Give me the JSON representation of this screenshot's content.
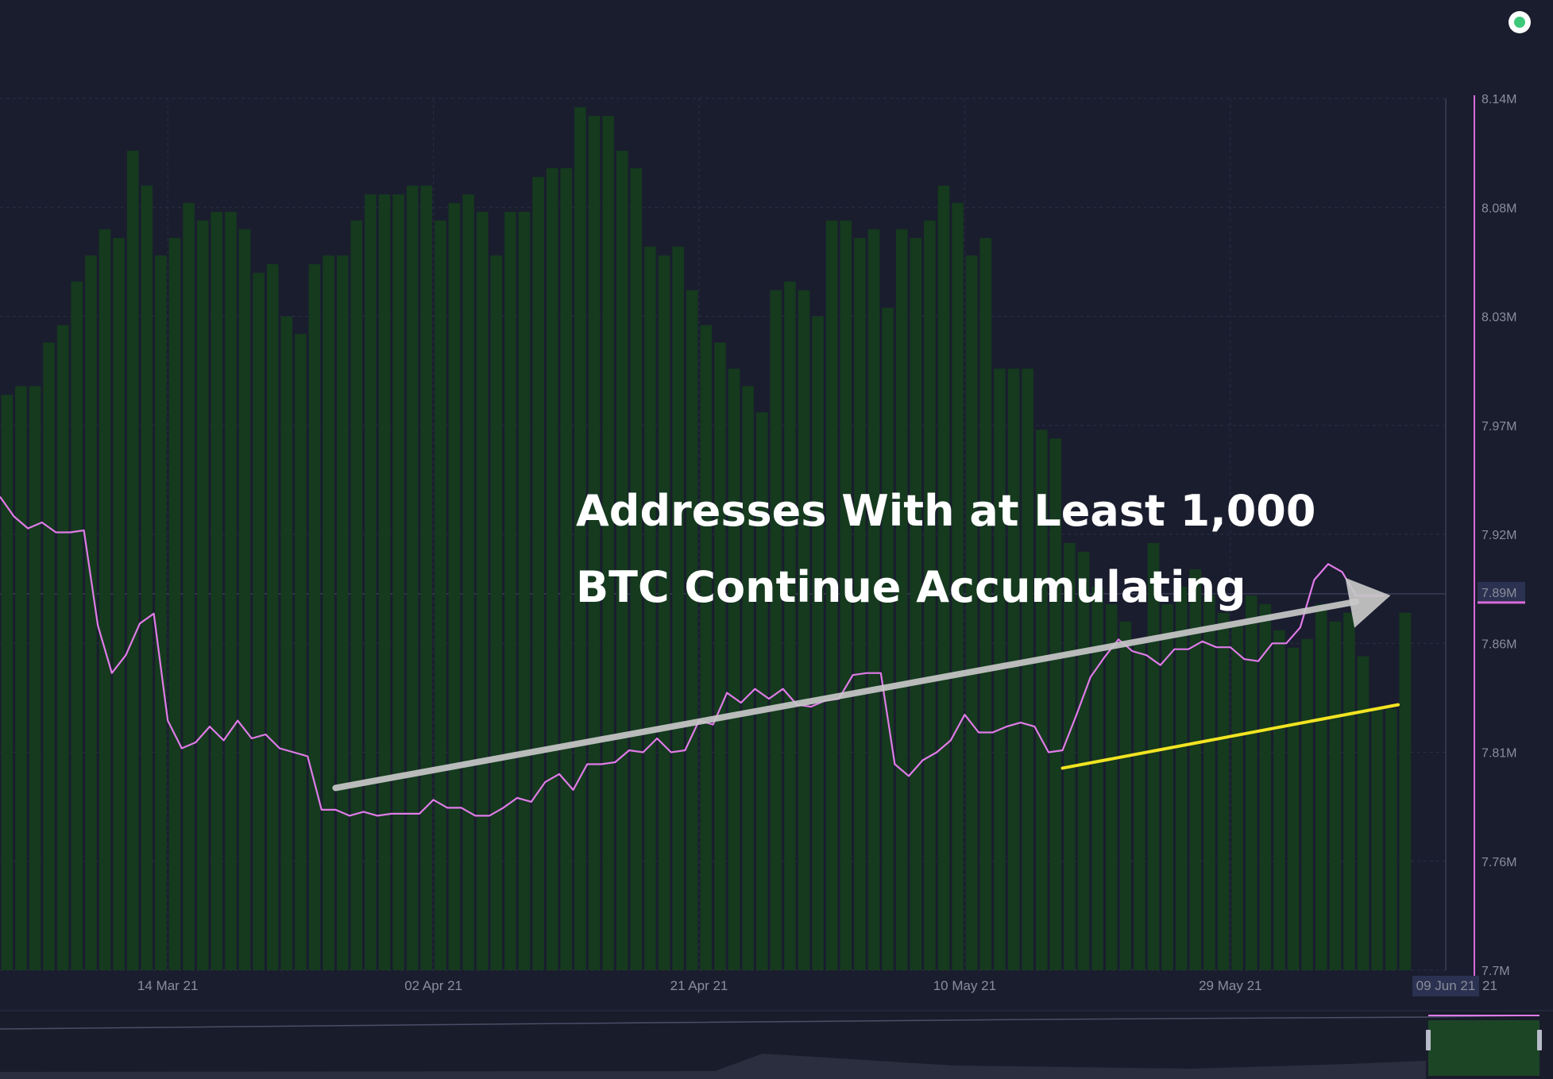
{
  "headline": {
    "line1": "Addresses With at Least 1,000",
    "line2": "BTC Continue Accumulating"
  },
  "colors": {
    "background": "#1a1d2e",
    "bar": "#153a1e",
    "line": "#e07be8",
    "trend_arrow": "#c8c8c8",
    "support_line": "#f2e422",
    "axis_line": "#d96ad9",
    "status_dot": "#3ec97a"
  },
  "chart_data": {
    "type": "bar+line",
    "x_axis": {
      "tick_labels": [
        "14 Mar 21",
        "02 Apr 21",
        "21 Apr 21",
        "10 May 21",
        "29 May 21",
        "21"
      ],
      "highlighted_label": "09 Jun 21"
    },
    "y_axis": {
      "position": "right",
      "ylim": [
        7.7,
        8.14
      ],
      "tick_labels": [
        "8.14M",
        "8.08M",
        "8.03M",
        "7.97M",
        "7.92M",
        "7.86M",
        "7.81M",
        "7.76M",
        "7.7M"
      ],
      "current_value_label": "7.89M",
      "current_value": 7.89
    },
    "grid": true,
    "bars": {
      "name": "",
      "relative_values": [
        0.66,
        0.67,
        0.67,
        0.72,
        0.74,
        0.79,
        0.82,
        0.85,
        0.84,
        0.94,
        0.9,
        0.82,
        0.84,
        0.88,
        0.86,
        0.87,
        0.87,
        0.85,
        0.8,
        0.81,
        0.75,
        0.73,
        0.81,
        0.82,
        0.82,
        0.86,
        0.89,
        0.89,
        0.89,
        0.9,
        0.9,
        0.86,
        0.88,
        0.89,
        0.87,
        0.82,
        0.87,
        0.87,
        0.91,
        0.92,
        0.92,
        0.99,
        0.98,
        0.98,
        0.94,
        0.92,
        0.83,
        0.82,
        0.83,
        0.78,
        0.74,
        0.72,
        0.69,
        0.67,
        0.64,
        0.78,
        0.79,
        0.78,
        0.75,
        0.86,
        0.86,
        0.84,
        0.85,
        0.76,
        0.85,
        0.84,
        0.86,
        0.9,
        0.88,
        0.82,
        0.84,
        0.69,
        0.69,
        0.69,
        0.62,
        0.61,
        0.49,
        0.48,
        0.44,
        0.42,
        0.4,
        0.38,
        0.49,
        0.42,
        0.44,
        0.46,
        0.43,
        0.41,
        0.4,
        0.43,
        0.42,
        0.39,
        0.37,
        0.38,
        0.42,
        0.4,
        0.41,
        0.36,
        0.3,
        0.3,
        0.41
      ],
      "start_date": "2021-03-02",
      "end_date": "2021-06-09"
    },
    "line_series": {
      "name": "",
      "color": "#e07be8",
      "dates": [
        "2021-03-02",
        "2021-03-03",
        "2021-03-04",
        "2021-03-05",
        "2021-03-06",
        "2021-03-07",
        "2021-03-08",
        "2021-03-09",
        "2021-03-10",
        "2021-03-11",
        "2021-03-12",
        "2021-03-13",
        "2021-03-14",
        "2021-03-15",
        "2021-03-16",
        "2021-03-17",
        "2021-03-18",
        "2021-03-19",
        "2021-03-20",
        "2021-03-21",
        "2021-03-22",
        "2021-03-23",
        "2021-03-24",
        "2021-03-25",
        "2021-03-26",
        "2021-03-27",
        "2021-03-28",
        "2021-03-29",
        "2021-03-30",
        "2021-03-31",
        "2021-04-01",
        "2021-04-02",
        "2021-04-03",
        "2021-04-04",
        "2021-04-05",
        "2021-04-06",
        "2021-04-07",
        "2021-04-08",
        "2021-04-09",
        "2021-04-10",
        "2021-04-11",
        "2021-04-12",
        "2021-04-13",
        "2021-04-14",
        "2021-04-15",
        "2021-04-16",
        "2021-04-17",
        "2021-04-18",
        "2021-04-19",
        "2021-04-20",
        "2021-04-21",
        "2021-04-22",
        "2021-04-23",
        "2021-04-24",
        "2021-04-25",
        "2021-04-26",
        "2021-04-27",
        "2021-04-28",
        "2021-04-29",
        "2021-04-30",
        "2021-05-01",
        "2021-05-02",
        "2021-05-03",
        "2021-05-04",
        "2021-05-05",
        "2021-05-06",
        "2021-05-07",
        "2021-05-08",
        "2021-05-09",
        "2021-05-10",
        "2021-05-11",
        "2021-05-12",
        "2021-05-13",
        "2021-05-14",
        "2021-05-15",
        "2021-05-16",
        "2021-05-17",
        "2021-05-18",
        "2021-05-19",
        "2021-05-20",
        "2021-05-21",
        "2021-05-22",
        "2021-05-23",
        "2021-05-24",
        "2021-05-25",
        "2021-05-26",
        "2021-05-27",
        "2021-05-28",
        "2021-05-29",
        "2021-05-30",
        "2021-05-31",
        "2021-06-01",
        "2021-06-02",
        "2021-06-03",
        "2021-06-04",
        "2021-06-05",
        "2021-06-06",
        "2021-06-07",
        "2021-06-08",
        "2021-06-09"
      ],
      "values": [
        7.939,
        7.929,
        7.923,
        7.926,
        7.921,
        7.921,
        7.922,
        7.874,
        7.85,
        7.859,
        7.875,
        7.88,
        7.826,
        7.812,
        7.815,
        7.823,
        7.816,
        7.826,
        7.817,
        7.819,
        7.812,
        7.81,
        7.808,
        7.781,
        7.781,
        7.778,
        7.78,
        7.778,
        7.779,
        7.779,
        7.779,
        7.786,
        7.782,
        7.782,
        7.778,
        7.778,
        7.782,
        7.787,
        7.785,
        7.795,
        7.799,
        7.791,
        7.804,
        7.804,
        7.805,
        7.811,
        7.81,
        7.817,
        7.81,
        7.811,
        7.826,
        7.824,
        7.84,
        7.835,
        7.842,
        7.837,
        7.842,
        7.834,
        7.833,
        7.836,
        7.837,
        7.849,
        7.85,
        7.85,
        7.804,
        7.798,
        7.806,
        7.81,
        7.816,
        7.829,
        7.82,
        7.82,
        7.823,
        7.825,
        7.823,
        7.81,
        7.811,
        7.829,
        7.848,
        7.858,
        7.867,
        7.861,
        7.859,
        7.854,
        7.862,
        7.862,
        7.866,
        7.863,
        7.863,
        7.857,
        7.856,
        7.865,
        7.865,
        7.873,
        7.897,
        7.905,
        7.901,
        7.889,
        7.889,
        7.889
      ]
    },
    "annotations": [
      {
        "kind": "trend_arrow",
        "color": "#c8c8c8",
        "from": {
          "date": "2021-03-26",
          "value": 7.792
        },
        "to": {
          "date": "2021-06-07",
          "value": 7.886
        }
      },
      {
        "kind": "support_line",
        "color": "#f2e422",
        "from": {
          "date": "2021-05-17",
          "value": 7.802
        },
        "to": {
          "date": "2021-06-10",
          "value": 7.834
        }
      }
    ],
    "navigator": true
  }
}
